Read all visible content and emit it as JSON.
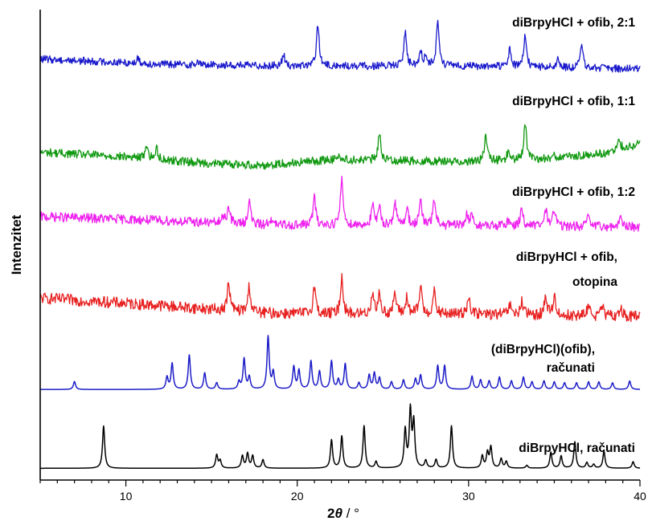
{
  "chart_data": {
    "type": "line",
    "title": "",
    "xlabel_main": "2",
    "xlabel_theta": "θ",
    "xlabel_unit": " / °",
    "ylabel": "Intenzitet",
    "xlim": [
      5,
      40
    ],
    "x_ticks": [
      10,
      20,
      30,
      40
    ],
    "y_ticks_shown": false,
    "grid": false,
    "series": [
      {
        "name": "diBrpyHCl, računati",
        "label_lines": [
          "diBrpyHCl, računati"
        ],
        "color": "#000000",
        "kind": "calc",
        "baseline": 0.025,
        "noise": 0.0,
        "peaks": [
          [
            8.7,
            0.09
          ],
          [
            15.3,
            0.028
          ],
          [
            15.5,
            0.016
          ],
          [
            16.8,
            0.026
          ],
          [
            17.1,
            0.031
          ],
          [
            17.4,
            0.026
          ],
          [
            18.0,
            0.018
          ],
          [
            22.0,
            0.06
          ],
          [
            22.6,
            0.068
          ],
          [
            23.9,
            0.09
          ],
          [
            24.6,
            0.014
          ],
          [
            26.3,
            0.08
          ],
          [
            26.6,
            0.12
          ],
          [
            26.8,
            0.095
          ],
          [
            27.5,
            0.016
          ],
          [
            28.1,
            0.018
          ],
          [
            29.0,
            0.09
          ],
          [
            30.8,
            0.026
          ],
          [
            31.1,
            0.032
          ],
          [
            31.3,
            0.044
          ],
          [
            31.9,
            0.02
          ],
          [
            32.2,
            0.014
          ],
          [
            33.4,
            0.006
          ],
          [
            34.8,
            0.034
          ],
          [
            35.4,
            0.026
          ],
          [
            36.2,
            0.056
          ],
          [
            36.9,
            0.012
          ],
          [
            37.3,
            0.008
          ],
          [
            37.9,
            0.036
          ],
          [
            39.6,
            0.014
          ]
        ]
      },
      {
        "name": "(diBrpyHCl)(ofib), računati",
        "label_lines": [
          "(diBrpyHCl)(ofib),",
          "računati"
        ],
        "color": "#1c1cc8",
        "kind": "calc",
        "baseline": 0.1925,
        "noise": 0.0,
        "peaks": [
          [
            7.0,
            0.017
          ],
          [
            12.4,
            0.026
          ],
          [
            12.7,
            0.055
          ],
          [
            13.7,
            0.073
          ],
          [
            14.6,
            0.035
          ],
          [
            15.3,
            0.014
          ],
          [
            16.6,
            0.016
          ],
          [
            16.9,
            0.065
          ],
          [
            17.2,
            0.026
          ],
          [
            18.3,
            0.112
          ],
          [
            18.6,
            0.036
          ],
          [
            19.8,
            0.048
          ],
          [
            20.1,
            0.04
          ],
          [
            20.8,
            0.06
          ],
          [
            21.3,
            0.038
          ],
          [
            22.0,
            0.06
          ],
          [
            22.4,
            0.02
          ],
          [
            22.8,
            0.054
          ],
          [
            23.6,
            0.014
          ],
          [
            24.2,
            0.03
          ],
          [
            24.5,
            0.034
          ],
          [
            24.8,
            0.024
          ],
          [
            25.5,
            0.016
          ],
          [
            26.2,
            0.02
          ],
          [
            26.9,
            0.022
          ],
          [
            27.2,
            0.03
          ],
          [
            28.2,
            0.05
          ],
          [
            28.6,
            0.05
          ],
          [
            30.2,
            0.028
          ],
          [
            30.7,
            0.02
          ],
          [
            31.2,
            0.018
          ],
          [
            31.8,
            0.026
          ],
          [
            32.5,
            0.018
          ],
          [
            33.2,
            0.026
          ],
          [
            33.7,
            0.016
          ],
          [
            34.4,
            0.018
          ],
          [
            35.0,
            0.016
          ],
          [
            35.6,
            0.014
          ],
          [
            36.3,
            0.014
          ],
          [
            37.0,
            0.016
          ],
          [
            37.6,
            0.016
          ],
          [
            38.4,
            0.014
          ],
          [
            39.4,
            0.018
          ]
        ]
      },
      {
        "name": "diBrpyHCl + ofib, otopina",
        "label_lines": [
          "diBrpyHCl + ofib,",
          "otopina"
        ],
        "color": "#e82020",
        "kind": "exp",
        "baseline": 0.365,
        "noise": 0.012,
        "hump": [
          [
            5,
            0.022
          ],
          [
            12,
            0.006
          ],
          [
            18,
            -0.01
          ],
          [
            22,
            -0.012
          ],
          [
            30,
            -0.012
          ],
          [
            40,
            -0.018
          ]
        ],
        "peaks": [
          [
            16.0,
            0.06
          ],
          [
            17.2,
            0.055
          ],
          [
            21.0,
            0.06
          ],
          [
            22.6,
            0.08
          ],
          [
            24.4,
            0.048
          ],
          [
            24.8,
            0.04
          ],
          [
            25.7,
            0.045
          ],
          [
            26.4,
            0.035
          ],
          [
            27.2,
            0.06
          ],
          [
            28.0,
            0.045
          ],
          [
            30.0,
            0.04
          ],
          [
            32.4,
            0.02
          ],
          [
            33.1,
            0.028
          ],
          [
            34.5,
            0.04
          ],
          [
            35.0,
            0.042
          ],
          [
            37.0,
            0.025
          ],
          [
            37.8,
            0.02
          ],
          [
            38.9,
            0.02
          ]
        ]
      },
      {
        "name": "diBrpyHCl + ofib, 1:2",
        "label_lines": [
          "diBrpyHCl + ofib, 1:2"
        ],
        "color": "#ee22ee",
        "kind": "exp",
        "baseline": 0.548,
        "noise": 0.01,
        "hump": [
          [
            5,
            0.012
          ],
          [
            12,
            0.004
          ],
          [
            18,
            -0.006
          ],
          [
            25,
            -0.006
          ],
          [
            40,
            -0.01
          ]
        ],
        "peaks": [
          [
            15.7,
            0.015
          ],
          [
            16.0,
            0.036
          ],
          [
            17.2,
            0.052
          ],
          [
            18.4,
            0.014
          ],
          [
            21.0,
            0.06
          ],
          [
            22.6,
            0.1
          ],
          [
            24.4,
            0.04
          ],
          [
            24.8,
            0.034
          ],
          [
            25.7,
            0.05
          ],
          [
            26.4,
            0.038
          ],
          [
            27.2,
            0.05
          ],
          [
            28.0,
            0.056
          ],
          [
            29.9,
            0.024
          ],
          [
            30.2,
            0.022
          ],
          [
            32.3,
            0.012
          ],
          [
            33.1,
            0.04
          ],
          [
            34.5,
            0.036
          ],
          [
            35.0,
            0.038
          ],
          [
            37.0,
            0.022
          ],
          [
            38.9,
            0.02
          ]
        ]
      },
      {
        "name": "diBrpyHCl + ofib, 1:1",
        "label_lines": [
          "diBrpyHCl + ofib, 1:1"
        ],
        "color": "#119911",
        "kind": "exp",
        "baseline": 0.675,
        "noise": 0.009,
        "hump": [
          [
            5,
            0.022
          ],
          [
            10,
            0.012
          ],
          [
            15,
            -0.002
          ],
          [
            18,
            -0.006
          ],
          [
            22,
            0.006
          ],
          [
            26,
            0.004
          ],
          [
            30,
            0.002
          ],
          [
            35,
            0.008
          ],
          [
            38,
            0.02
          ],
          [
            40,
            0.04
          ]
        ],
        "peaks": [
          [
            11.2,
            0.03
          ],
          [
            11.8,
            0.022
          ],
          [
            22.4,
            0.012
          ],
          [
            24.8,
            0.06
          ],
          [
            31.0,
            0.055
          ],
          [
            32.3,
            0.016
          ],
          [
            33.3,
            0.08
          ],
          [
            35.0,
            0.012
          ],
          [
            38.8,
            0.02
          ]
        ]
      },
      {
        "name": "diBrpyHCl + ofib, 2:1",
        "label_lines": [
          "diBrpyHCl + ofib, 2:1"
        ],
        "color": "#1a1acc",
        "kind": "exp",
        "baseline": 0.88,
        "noise": 0.008,
        "hump": [
          [
            5,
            0.015
          ],
          [
            12,
            0.004
          ],
          [
            20,
            0.0
          ],
          [
            30,
            0.0
          ],
          [
            40,
            -0.006
          ]
        ],
        "peaks": [
          [
            10.7,
            0.01
          ],
          [
            14.2,
            0.006
          ],
          [
            19.2,
            0.024
          ],
          [
            21.2,
            0.09
          ],
          [
            26.3,
            0.075
          ],
          [
            27.2,
            0.03
          ],
          [
            27.5,
            0.024
          ],
          [
            28.2,
            0.1
          ],
          [
            32.4,
            0.038
          ],
          [
            33.3,
            0.07
          ],
          [
            35.2,
            0.018
          ],
          [
            36.6,
            0.05
          ]
        ]
      }
    ]
  }
}
